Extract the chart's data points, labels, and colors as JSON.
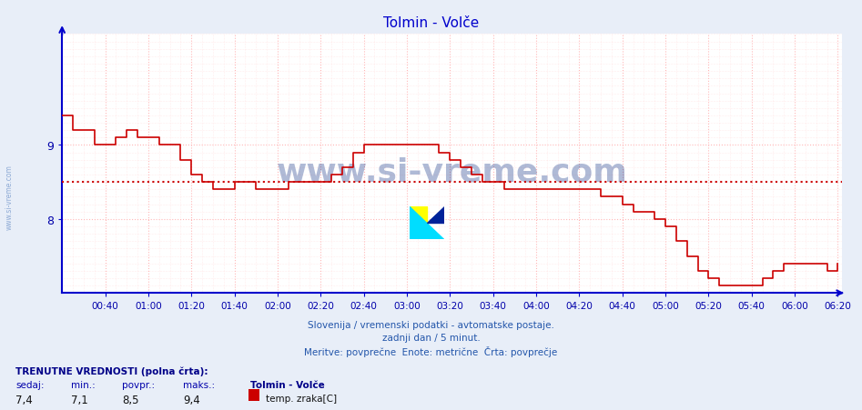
{
  "title": "Tolmin - Volče",
  "title_color": "#0000cc",
  "bg_color": "#e8eef8",
  "plot_bg_color": "#ffffff",
  "line_color": "#cc0000",
  "avg_line_color": "#cc0000",
  "avg_line_value": 8.5,
  "grid_color": "#ffb0b0",
  "axis_color": "#0000cc",
  "tick_color": "#0000aa",
  "ylim_low": 7.0,
  "ylim_high": 10.5,
  "yticks": [
    8.0,
    9.0
  ],
  "xtick_labels": [
    "00:40",
    "01:00",
    "01:20",
    "01:40",
    "02:00",
    "02:20",
    "02:40",
    "03:00",
    "03:20",
    "03:40",
    "04:00",
    "04:20",
    "04:40",
    "05:00",
    "05:20",
    "05:40",
    "06:00",
    "06:20"
  ],
  "subtitle1": "Slovenija / vremenski podatki - avtomatske postaje.",
  "subtitle2": "zadnji dan / 5 minut.",
  "subtitle3": "Meritve: povprečne  Enote: metrične  Črta: povprečje",
  "footer_label": "TRENUTNE VREDNOSTI (polna črta):",
  "col_headers": [
    "sedaj:",
    "min.:",
    "povpr.:",
    "maks.:"
  ],
  "col_values": [
    "7,4",
    "7,1",
    "8,5",
    "9,4"
  ],
  "station_name": "Tolmin - Volče",
  "sensor_label": "temp. zraka[C]",
  "watermark": "www.si-vreme.com",
  "left_watermark": "www.si-vreme.com",
  "time_minutes": [
    20,
    25,
    30,
    35,
    40,
    45,
    50,
    55,
    60,
    65,
    70,
    75,
    80,
    85,
    90,
    95,
    100,
    105,
    110,
    115,
    120,
    125,
    130,
    135,
    140,
    145,
    150,
    155,
    160,
    165,
    170,
    175,
    180,
    185,
    190,
    195,
    200,
    205,
    210,
    215,
    220,
    225,
    230,
    235,
    240,
    245,
    250,
    255,
    260,
    265,
    270,
    275,
    280,
    285,
    290,
    295,
    300,
    305,
    310,
    315,
    320,
    325,
    330,
    335,
    340,
    345,
    350,
    355,
    360,
    365,
    370,
    375,
    380
  ],
  "temp_values": [
    9.4,
    9.2,
    9.2,
    9.0,
    9.0,
    9.1,
    9.2,
    9.1,
    9.1,
    9.0,
    9.0,
    8.8,
    8.6,
    8.5,
    8.4,
    8.4,
    8.5,
    8.5,
    8.4,
    8.4,
    8.4,
    8.5,
    8.5,
    8.5,
    8.5,
    8.6,
    8.7,
    8.9,
    9.0,
    9.0,
    9.0,
    9.0,
    9.0,
    9.0,
    9.0,
    8.9,
    8.8,
    8.7,
    8.6,
    8.5,
    8.5,
    8.4,
    8.4,
    8.4,
    8.4,
    8.4,
    8.4,
    8.4,
    8.4,
    8.4,
    8.3,
    8.3,
    8.2,
    8.1,
    8.1,
    8.0,
    7.9,
    7.7,
    7.5,
    7.3,
    7.2,
    7.1,
    7.1,
    7.1,
    7.1,
    7.2,
    7.3,
    7.4,
    7.4,
    7.4,
    7.4,
    7.3,
    7.4
  ]
}
